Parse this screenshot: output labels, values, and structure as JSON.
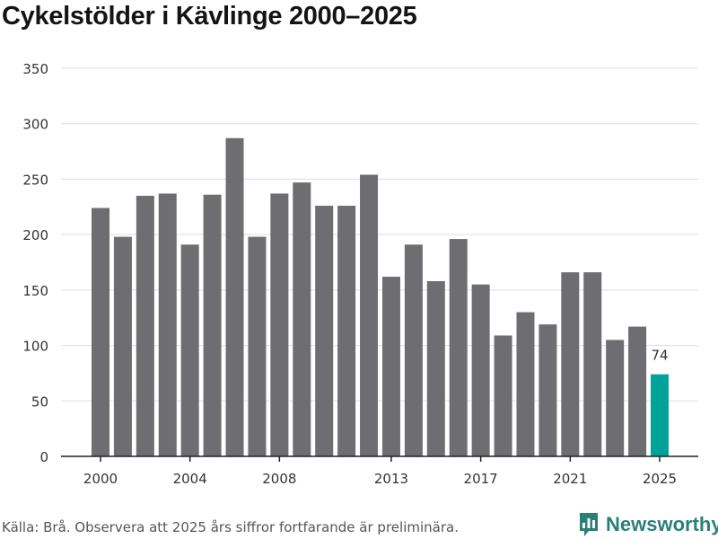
{
  "title": "Cykelstölder i Kävlinge 2000–2025",
  "source": "Källa: Brå. Observera att 2025 års siffror fortfarande är preliminära.",
  "brand": {
    "name": "Newsworthy",
    "icon": "newsworthy-logo-icon"
  },
  "colors": {
    "bar": "#6e6d72",
    "highlight": "#00a39a",
    "grid": "#dddddd",
    "axis": "#222222"
  },
  "chart_data": {
    "type": "bar",
    "title": "Cykelstölder i Kävlinge 2000–2025",
    "xlabel": "",
    "ylabel": "",
    "ylim": [
      0,
      350
    ],
    "yticks": [
      0,
      50,
      100,
      150,
      200,
      250,
      300,
      350
    ],
    "xticks": [
      2000,
      2004,
      2008,
      2013,
      2017,
      2021,
      2025
    ],
    "categories": [
      2000,
      2001,
      2002,
      2003,
      2004,
      2005,
      2006,
      2007,
      2008,
      2009,
      2010,
      2011,
      2012,
      2013,
      2014,
      2015,
      2016,
      2017,
      2018,
      2019,
      2020,
      2021,
      2022,
      2023,
      2024,
      2025
    ],
    "values": [
      224,
      198,
      235,
      237,
      191,
      236,
      287,
      198,
      237,
      247,
      226,
      226,
      254,
      162,
      191,
      158,
      196,
      155,
      109,
      130,
      119,
      166,
      166,
      105,
      117,
      74
    ],
    "highlight_category": 2025,
    "data_labels": [
      {
        "category": 2025,
        "text": "74"
      }
    ],
    "grid": true,
    "legend": "none"
  }
}
